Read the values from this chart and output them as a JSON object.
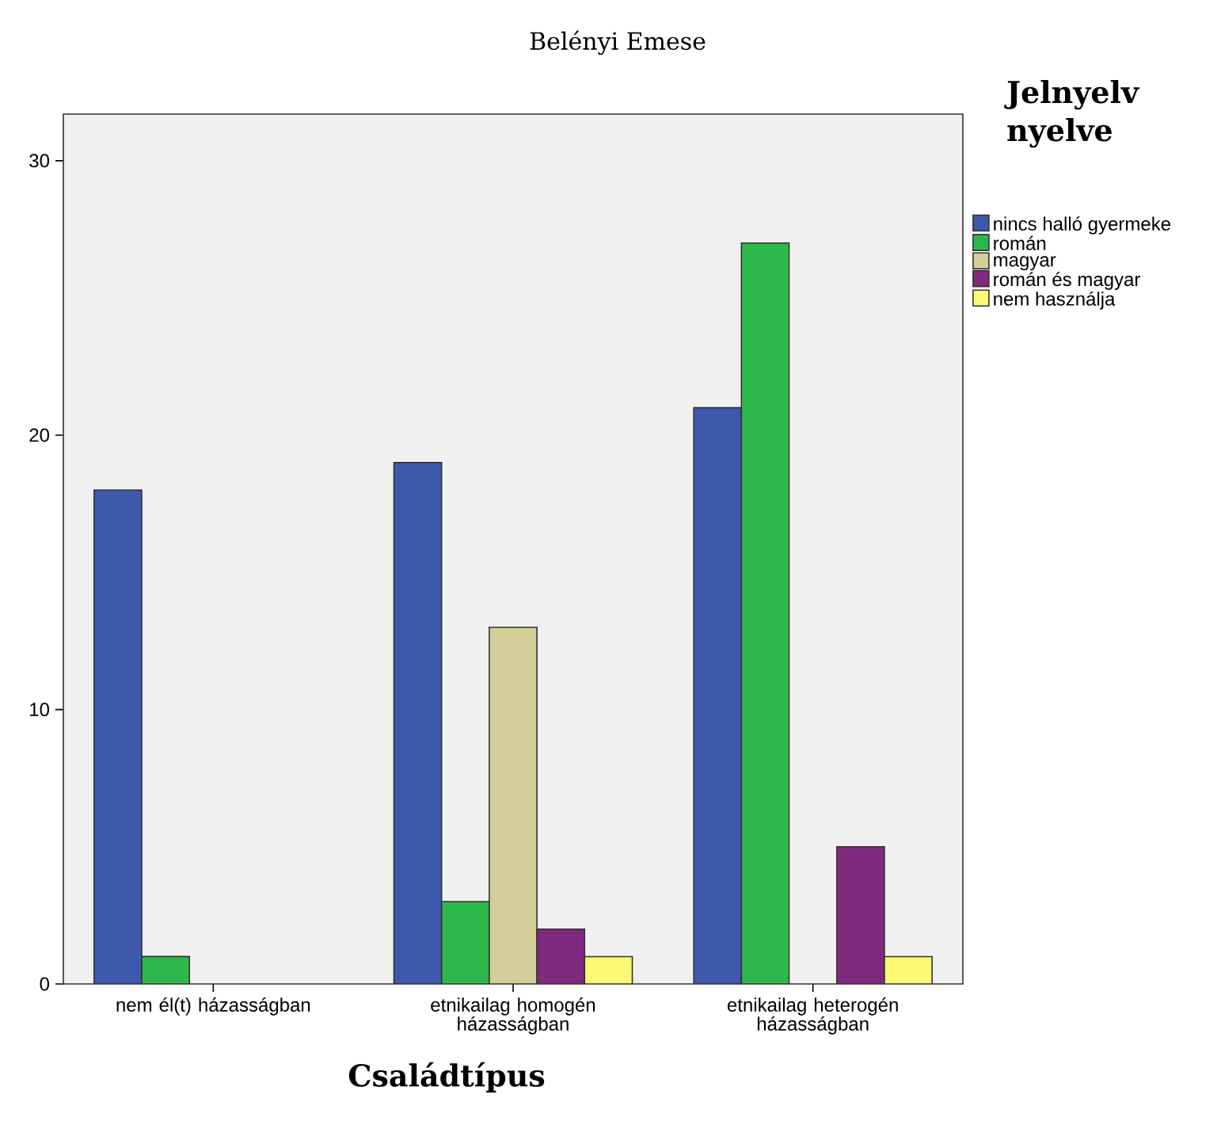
{
  "chart_data": {
    "type": "bar",
    "annotations": [
      "Belényi Emese"
    ],
    "xlabel": "Családtípus",
    "legend_title": "Jelnyelv nyelve",
    "legend": "top right",
    "categories": [
      "nem él(t) házasságban",
      "etnikailag homogén házasságban",
      "etnikailag heterogén házasságban"
    ],
    "series": [
      {
        "name": "nincs halló gyermeke",
        "color": "#3e58ac",
        "values": [
          18,
          19,
          21
        ]
      },
      {
        "name": "román",
        "color": "#2db84b",
        "values": [
          1,
          3,
          27
        ]
      },
      {
        "name": "magyar",
        "color": "#d3ce97",
        "values": [
          null,
          13,
          null
        ]
      },
      {
        "name": "román és magyar",
        "color": "#7f2a7e",
        "values": [
          null,
          2,
          5
        ]
      },
      {
        "name": "nem használja",
        "color": "#fbf873",
        "values": [
          null,
          1,
          1
        ]
      }
    ],
    "ylim": [
      0,
      31.7
    ],
    "yticks": [
      0,
      10,
      20,
      30
    ]
  }
}
